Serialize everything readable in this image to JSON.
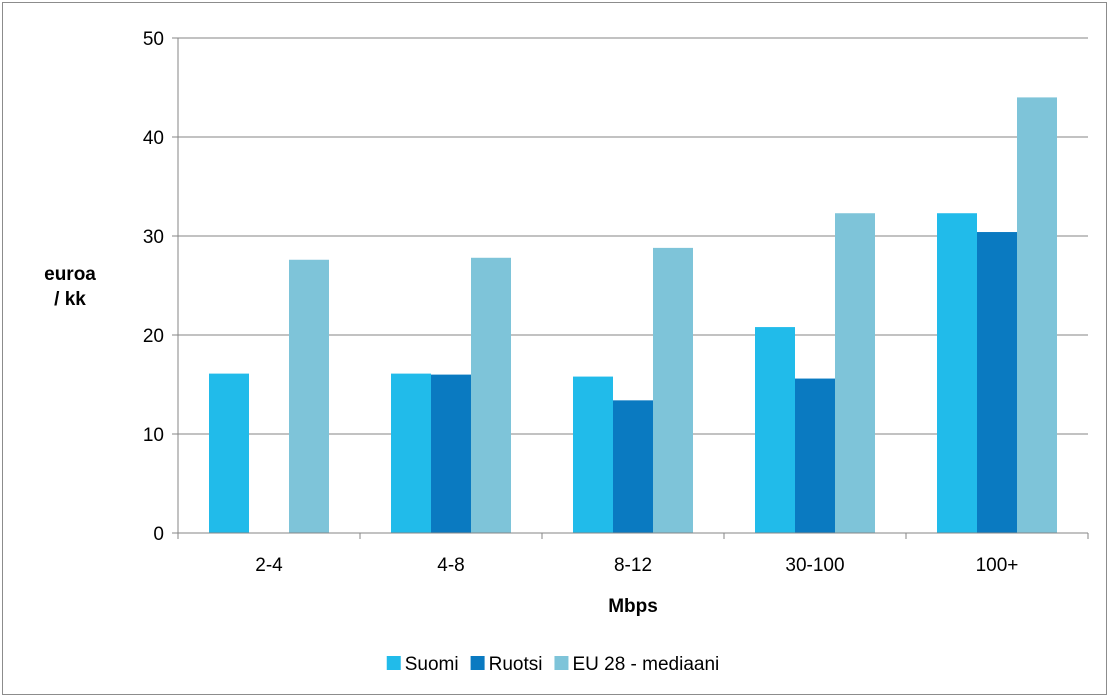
{
  "chart_data": {
    "type": "bar",
    "title": "",
    "xlabel": "Mbps",
    "ylabel_lines": [
      "euroa",
      "/ kk"
    ],
    "categories": [
      "2-4",
      "4-8",
      "8-12",
      "30-100",
      "100+"
    ],
    "ylim": [
      0,
      50
    ],
    "yticks": [
      0,
      10,
      20,
      30,
      40,
      50
    ],
    "grid": true,
    "legend_position": "bottom",
    "series": [
      {
        "name": "Suomi",
        "color": "#21bbea",
        "values": [
          16.1,
          16.1,
          15.8,
          20.8,
          32.3
        ]
      },
      {
        "name": "Ruotsi",
        "color": "#0a7ac1",
        "values": [
          null,
          16.0,
          13.4,
          15.6,
          30.4
        ]
      },
      {
        "name": "EU 28 - mediaani",
        "color": "#7ec4d9",
        "values": [
          27.6,
          27.8,
          28.8,
          32.3,
          44.0
        ]
      }
    ]
  }
}
